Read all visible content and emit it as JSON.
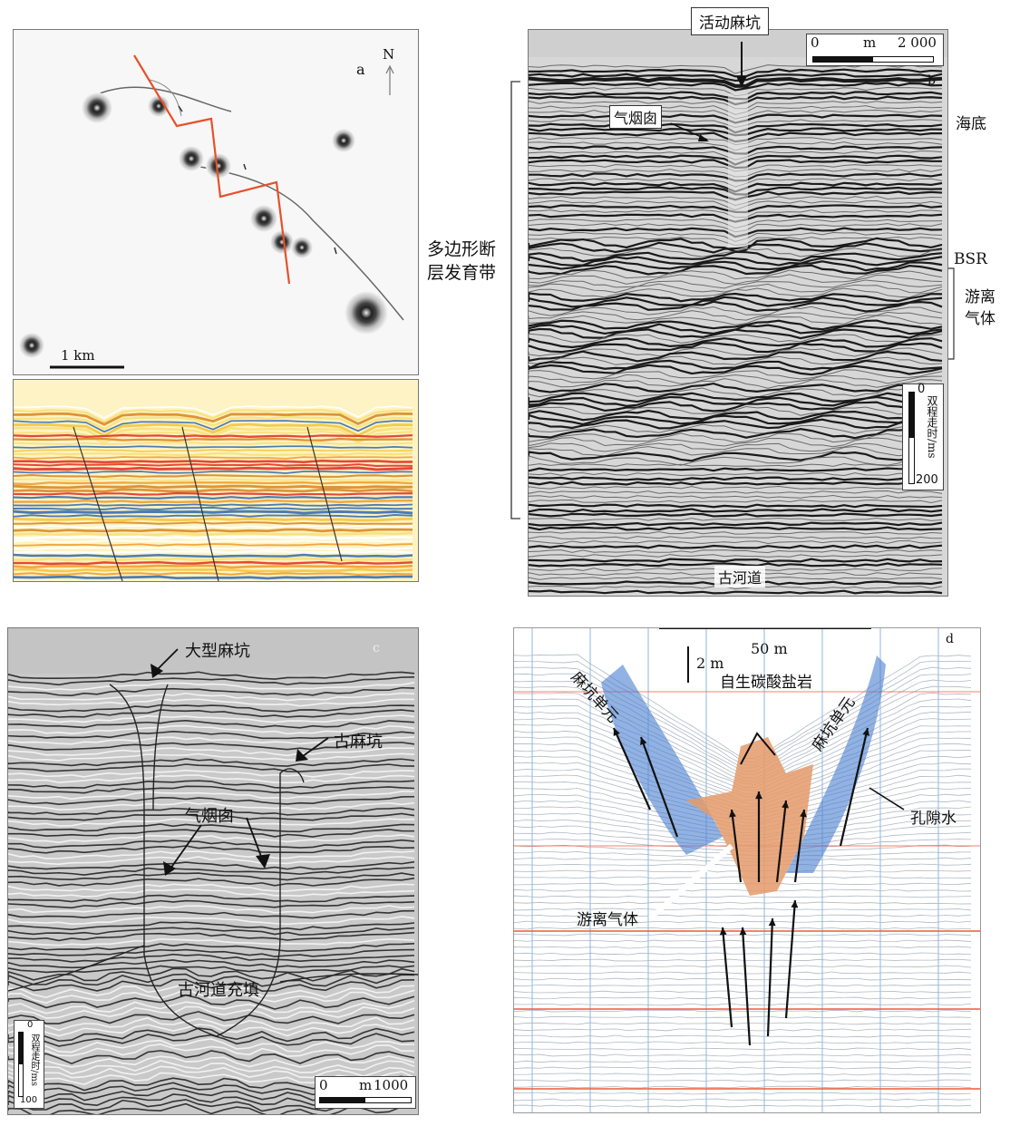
{
  "panel_a": {
    "letter": "a",
    "north": "N",
    "scale": "1 km"
  },
  "panel_b": {
    "letter": "b",
    "callout_top": "活动麻坑",
    "gas_chimney": "气烟囱",
    "seafloor": "海底",
    "bsr": "BSR",
    "free_gas": "游离\n气体",
    "paleochannel": "古河道",
    "scale_0": "0",
    "scale_unit": "m",
    "scale_max": "2 000",
    "vscale_0": "0",
    "vscale_200": "200",
    "vscale_label": "双程走时/ms"
  },
  "polygonal_fault_zone": "多边形断\n层发育带",
  "panel_c": {
    "letter": "c",
    "large_pockmark": "大型麻坑",
    "paleo_pockmark": "古麻坑",
    "gas_chimney": "气烟囱",
    "channel_fill": "古河道充填",
    "scale_0": "0",
    "scale_unit": "m",
    "scale_max": "1000",
    "vscale_0": "0",
    "vscale_100": "100",
    "vscale_label": "双程走时/ms"
  },
  "panel_d": {
    "letter": "d",
    "scale_h": "50 m",
    "scale_v": "2 m",
    "pockmark_unit_left": "麻坑单元",
    "pockmark_unit_right": "麻坑单元",
    "authigenic_carbonate": "自生碳酸盐岩",
    "pore_water": "孔隙水",
    "free_gas": "游离气体"
  },
  "colors": {
    "fault_red": "#e8502a",
    "blue_unit": "#4a7fd0",
    "orange_carbonate": "#e59a6a",
    "grid_red": "#ee5a3c",
    "grid_blue": "#8fb6e6"
  }
}
